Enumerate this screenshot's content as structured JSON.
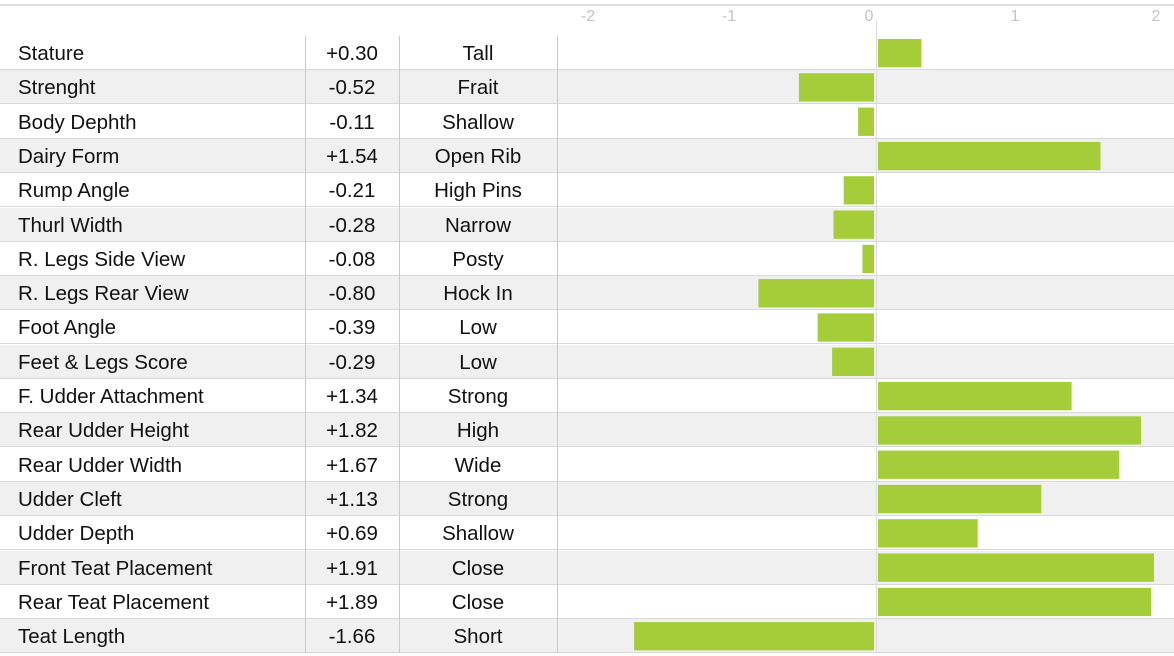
{
  "chart_data": {
    "type": "bar",
    "orientation": "horizontal",
    "xlim": [
      -2,
      2
    ],
    "x_ticks": [
      "-2",
      "-1",
      "0",
      "1",
      "2"
    ],
    "bar_color": "#a4cd39",
    "grid": false,
    "categories": [
      "Stature",
      "Strenght",
      "Body Dephth",
      "Dairy Form",
      "Rump Angle",
      "Thurl Width",
      "R. Legs Side View",
      "R. Legs Rear View",
      "Foot Angle",
      "Feet & Legs Score",
      "F. Udder Attachment",
      "Rear Udder Height",
      "Rear Udder Width",
      "Udder Cleft",
      "Udder Depth",
      "Front Teat Placement",
      "Rear Teat Placement",
      "Teat Length"
    ],
    "values": [
      0.3,
      -0.52,
      -0.11,
      1.54,
      -0.21,
      -0.28,
      -0.08,
      -0.8,
      -0.39,
      -0.29,
      1.34,
      1.82,
      1.67,
      1.13,
      0.69,
      1.91,
      1.89,
      -1.66
    ],
    "value_labels": [
      "+0.30",
      "-0.52",
      "-0.11",
      "+1.54",
      "-0.21",
      "-0.28",
      "-0.08",
      "-0.80",
      "-0.39",
      "-0.29",
      "+1.34",
      "+1.82",
      "+1.67",
      "+1.13",
      "+0.69",
      "+1.91",
      "+1.89",
      "-1.66"
    ],
    "descriptors": [
      "Tall",
      "Frait",
      "Shallow",
      "Open Rib",
      "High Pins",
      "Narrow",
      "Posty",
      "Hock In",
      "Low",
      "Low",
      "Strong",
      "High",
      "Wide",
      "Strong",
      "Shallow",
      "Close",
      "Close",
      "Short"
    ]
  }
}
